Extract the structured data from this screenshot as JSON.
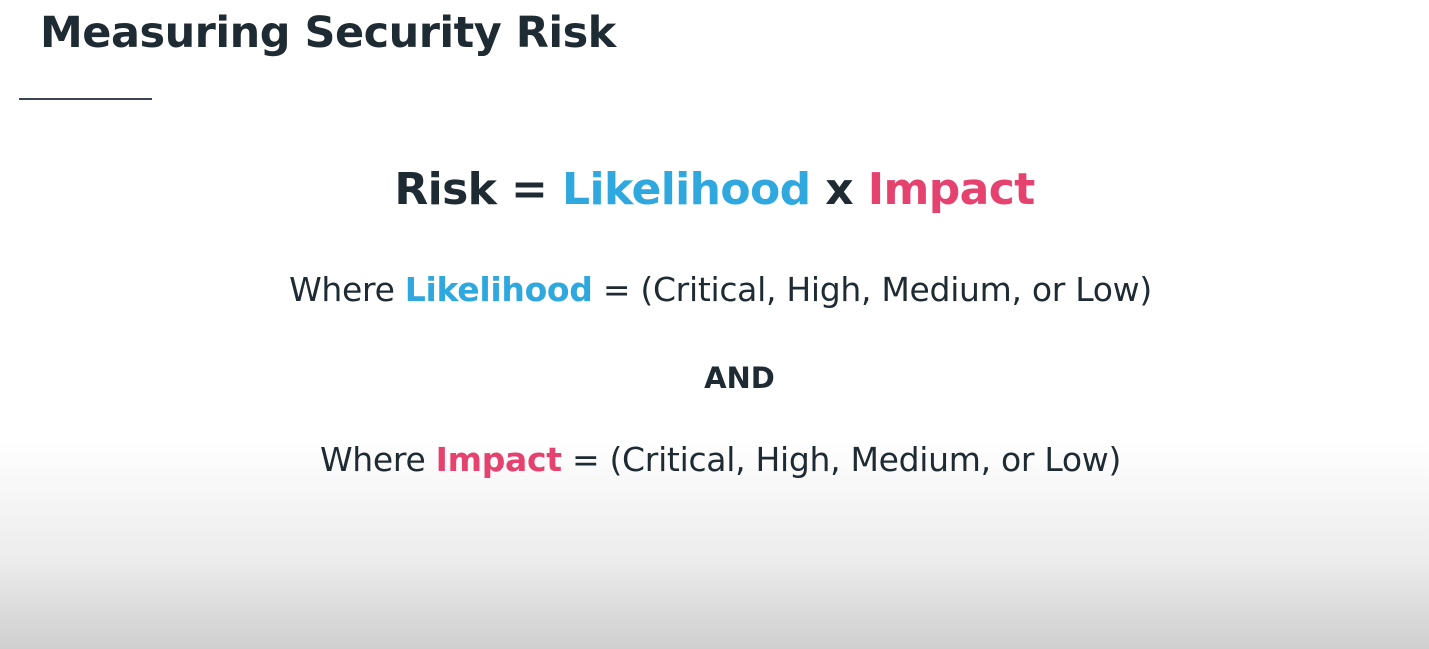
{
  "slide": {
    "title": "Measuring Security Risk",
    "formula": {
      "lhs": "Risk",
      "equals": "=",
      "term1": "Likelihood",
      "times": "x",
      "term2": "Impact"
    },
    "likelihood_line": {
      "prefix": "Where ",
      "term": "Likelihood",
      "suffix": " = (Critical, High, Medium, or Low)"
    },
    "conjunction": "AND",
    "impact_line": {
      "prefix": "Where ",
      "term": "Impact",
      "suffix": " = (Critical, High, Medium, or Low)"
    }
  },
  "colors": {
    "text": "#1f2b33",
    "likelihood": "#2ea8de",
    "impact": "#e5426f"
  }
}
